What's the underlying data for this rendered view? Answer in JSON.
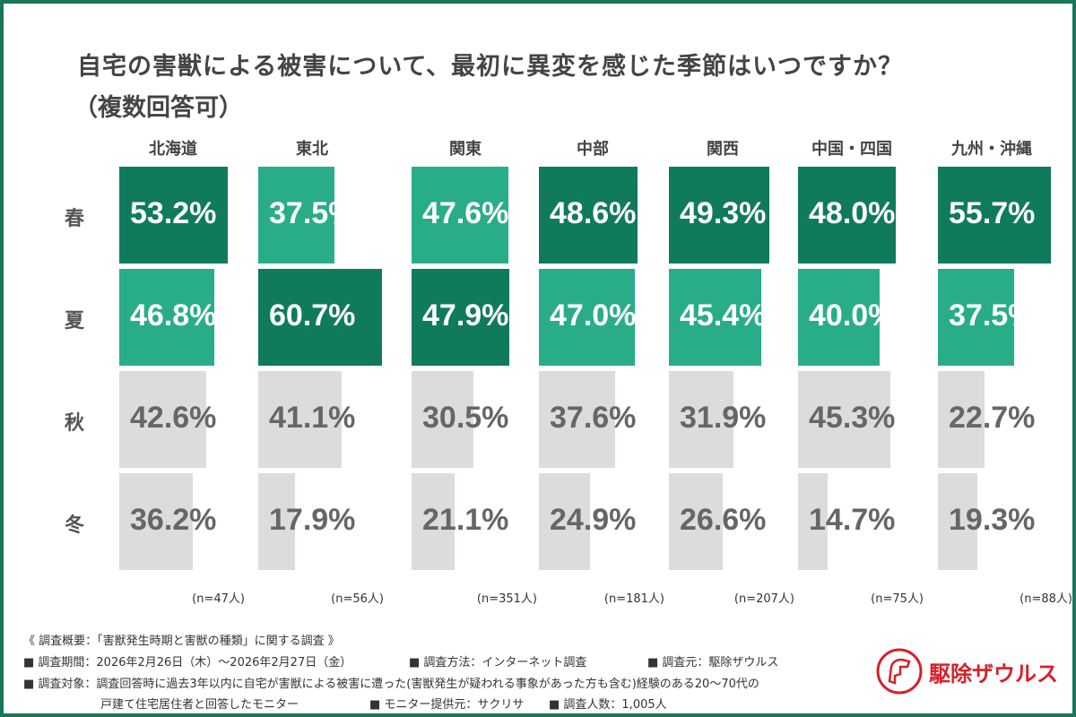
{
  "title": "自宅の害獣による被害について、最初に異変を感じた季節はいつですか？",
  "subtitle": "（複数回答可）",
  "chart_data": {
    "type": "bar",
    "title": "自宅の害獣による被害について、最初に異変を感じた季節はいつですか？（複数回答可）",
    "categories": [
      "北海道",
      "東北",
      "関東",
      "中部",
      "関西",
      "中国・四国",
      "九州・沖縄"
    ],
    "rows": [
      "春",
      "夏",
      "秋",
      "冬"
    ],
    "sample_sizes": [
      "(n=47人)",
      "(n=56人)",
      "(n=351人)",
      "(n=181人)",
      "(n=207人)",
      "(n=75人)",
      "(n=88人)"
    ],
    "series": [
      {
        "name": "春",
        "values": [
          53.2,
          37.5,
          47.6,
          48.6,
          49.3,
          48.0,
          55.7
        ]
      },
      {
        "name": "夏",
        "values": [
          46.8,
          60.7,
          47.9,
          47.0,
          45.4,
          40.0,
          37.5
        ]
      },
      {
        "name": "秋",
        "values": [
          42.6,
          41.1,
          30.5,
          37.6,
          31.9,
          45.3,
          22.7
        ]
      },
      {
        "name": "冬",
        "values": [
          36.2,
          17.9,
          21.1,
          24.9,
          26.6,
          14.7,
          19.3
        ]
      }
    ],
    "unit": "%",
    "colors": {
      "highest": "#107a5c",
      "second": "#29ad88",
      "other": "#dedbdd",
      "text_light": "#ffffff",
      "text_dark": "#666666"
    }
  },
  "footer": {
    "line1": "《 調査概要：「害獣発生時期と害獣の種類」に関する調査 》",
    "period": "■ 調査期間：2026年2月26日（木）～2026年2月27日（金）",
    "method": "■ 調査方法：インターネット調査",
    "source": "■ 調査元：駆除ザウルス",
    "target1": "■ 調査対象：調査回答時に過去3年以内に自宅が害獣による被害に遭った(害獣発生が疑われる事象があった方も含む)経験のある20～70代の",
    "target2": "戸建て住宅居住者と回答したモニター",
    "provider": "■ モニター提供元：サクリサ",
    "count": "■ 調査人数：1,005人"
  },
  "logo": {
    "text": "駆除ザウルス",
    "color": "#d6202a"
  }
}
